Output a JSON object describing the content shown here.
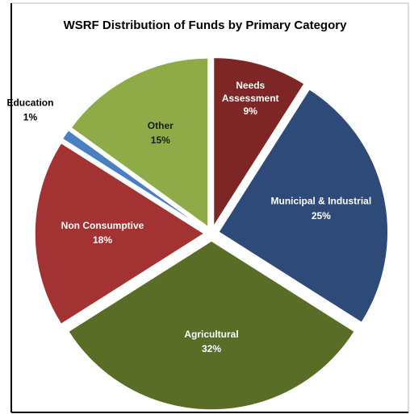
{
  "chart_data": {
    "type": "pie",
    "title": "WSRF Distribution of Funds by Primary Category",
    "categories": [
      "Needs Assessment",
      "Municipal & Industrial",
      "Agricultural",
      "Non Consumptive",
      "Education",
      "Other"
    ],
    "values": [
      9,
      25,
      32,
      18,
      1,
      15
    ],
    "value_labels": [
      "9%",
      "25%",
      "32%",
      "18%",
      "1%",
      "15%"
    ],
    "colors": [
      "#7e2626",
      "#2e4a78",
      "#5a6d26",
      "#a33333",
      "#4a7fc4",
      "#8fab48"
    ]
  }
}
